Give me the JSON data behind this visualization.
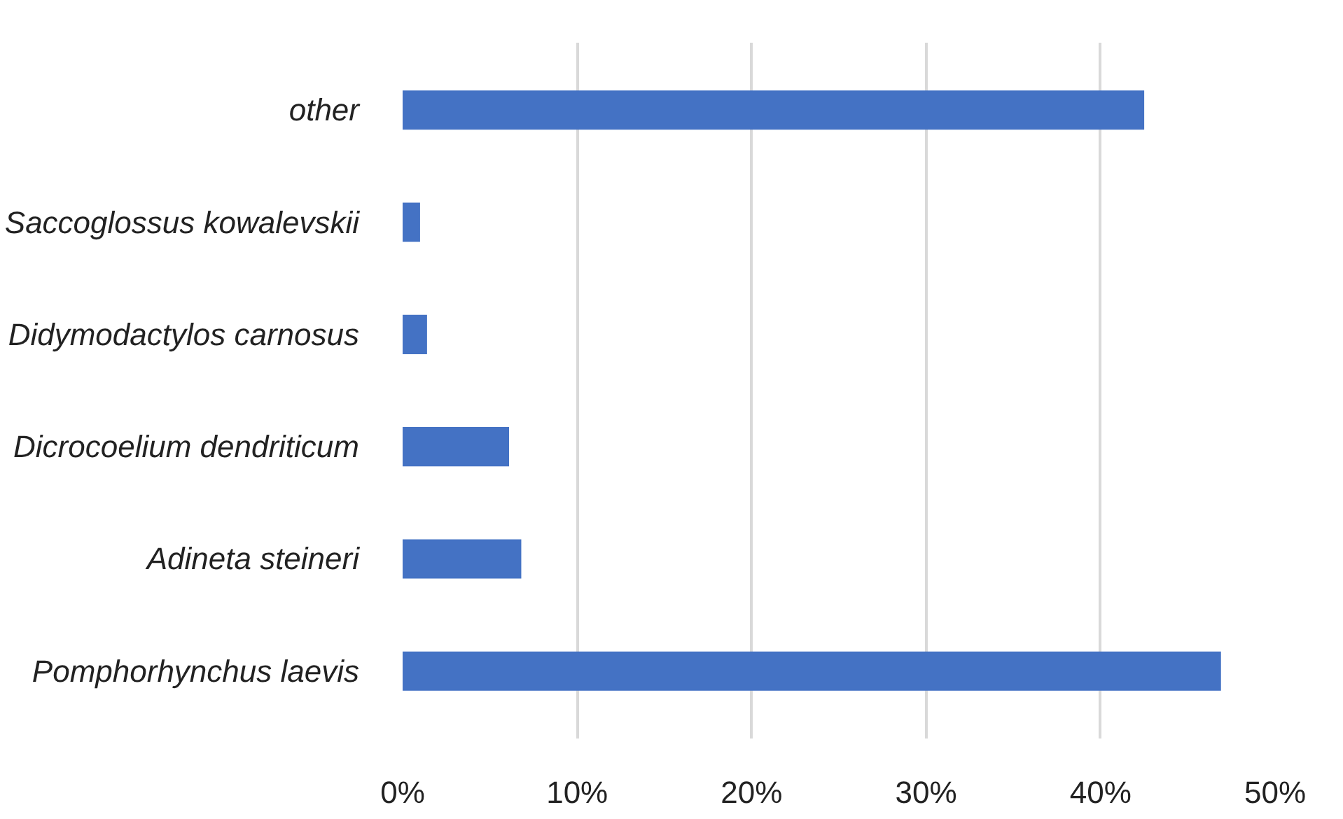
{
  "chart_data": {
    "type": "bar",
    "orientation": "horizontal",
    "categories": [
      "other",
      "Saccoglossus kowalevskii",
      "Didymodactylos carnosus",
      "Dicrocoelium dendriticum",
      "Adineta steineri",
      "Pomphorhynchus laevis"
    ],
    "values": [
      42.5,
      1.0,
      1.4,
      6.1,
      6.8,
      46.9
    ],
    "color": "#4472c4",
    "xlim": [
      0,
      50
    ],
    "xticks": [
      {
        "value": 0,
        "label": "0%"
      },
      {
        "value": 10,
        "label": "10%"
      },
      {
        "value": 20,
        "label": "20%"
      },
      {
        "value": 30,
        "label": "30%"
      },
      {
        "value": 40,
        "label": "40%"
      },
      {
        "value": 50,
        "label": "50%"
      }
    ],
    "grid": "x"
  }
}
